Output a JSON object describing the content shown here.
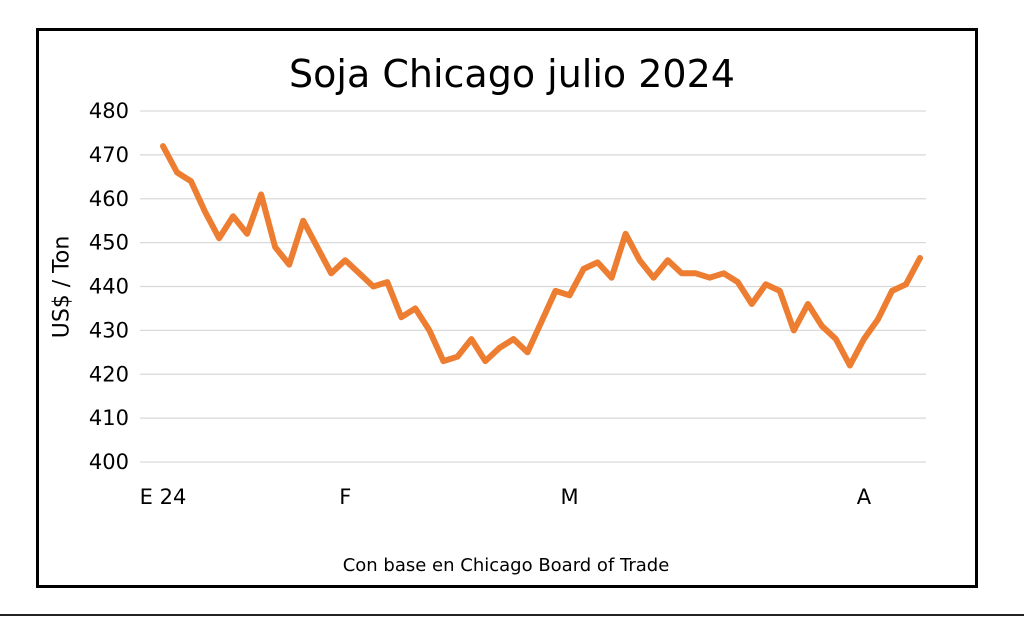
{
  "chart_data": {
    "type": "line",
    "title": "Soja Chicago julio 2024",
    "ylabel": "US$ / Ton",
    "xlabel": "",
    "note": "Con base en Chicago Board of Trade",
    "ylim": [
      400,
      480
    ],
    "yticks": [
      400,
      410,
      420,
      430,
      440,
      450,
      460,
      470,
      480
    ],
    "grid": true,
    "legend": "none",
    "x_tick_labels": [
      {
        "label": "E 24",
        "index": 0
      },
      {
        "label": "F",
        "index": 13
      },
      {
        "label": "M",
        "index": 29
      },
      {
        "label": "A",
        "index": 50
      },
      {
        "label": "M",
        "index": 64
      }
    ],
    "series": [
      {
        "color": "#ED7D31",
        "values": [
          472,
          466,
          464,
          457,
          451,
          456,
          452,
          461,
          449,
          445,
          455,
          449,
          443,
          446,
          443,
          440,
          441,
          433,
          435,
          430,
          423,
          424,
          428,
          423,
          426,
          428,
          425,
          432,
          439,
          438,
          444,
          445.5,
          442,
          452,
          446,
          442,
          446,
          443,
          443,
          442,
          443,
          441,
          436,
          440.5,
          439,
          430,
          436,
          431,
          428,
          422,
          428,
          432.5,
          439,
          440.5,
          446.5
        ]
      }
    ]
  }
}
